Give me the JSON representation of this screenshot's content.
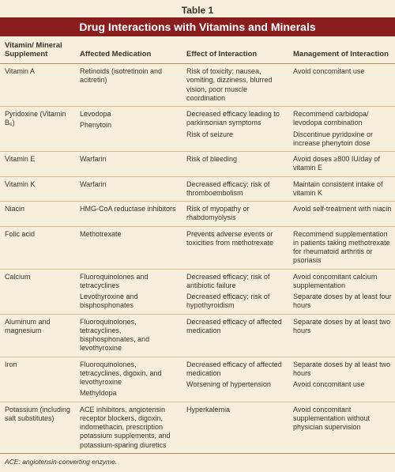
{
  "colors": {
    "background": "#f5efdb",
    "banner_bg": "#8a1e1e",
    "banner_text": "#ffffff",
    "rule": "#b58a5c",
    "row_rule": "#d9b990",
    "text": "#3a3428"
  },
  "typography": {
    "body_fontsize_pt": 9,
    "header_fontsize_pt": 9.5,
    "banner_fontsize_pt": 14,
    "label_fontsize_pt": 12,
    "footnote_fontsize_pt": 8.5
  },
  "table_label": "Table 1",
  "banner_title": "Drug Interactions with Vitamins and Minerals",
  "columns": [
    "Vitamin/ Mineral Supplement",
    "Affected Medication",
    "Effect of Interaction",
    "Management of Interaction"
  ],
  "column_widths_pct": [
    19,
    27,
    27,
    27
  ],
  "rows": [
    {
      "supplement": "Vitamin A",
      "lines": [
        {
          "med": "Retinoids (isotretinoin and acitretin)",
          "effect": "Risk of toxicity; nausea, vomiting, dizziness, blurred vision, poor muscle coordination",
          "mgmt": "Avoid concomitant use"
        }
      ]
    },
    {
      "supplement": "Pyridoxine (Vitamin B₆)",
      "lines": [
        {
          "med": "Levodopa",
          "effect": "Decreased efficacy leading to parkinsonian symptoms",
          "mgmt": "Recommend carbidopa/ levodopa combination"
        },
        {
          "med": "Phenytoin",
          "effect": "Risk of seizure",
          "mgmt": "Discontinue pyridoxine or increase phenytoin dose"
        }
      ]
    },
    {
      "supplement": "Vitamin E",
      "lines": [
        {
          "med": "Warfarin",
          "effect": "Risk of bleeding",
          "mgmt": "Avoid doses ≥800 IU/day of vitamin E"
        }
      ]
    },
    {
      "supplement": "Vitamin K",
      "lines": [
        {
          "med": "Warfarin",
          "effect": "Decreased efficacy; risk of thromboembolism",
          "mgmt": "Maintain consistent intake of vitamin K"
        }
      ]
    },
    {
      "supplement": "Niacin",
      "lines": [
        {
          "med": "HMG-CoA reductase inhibitors",
          "effect": "Risk of myopathy or rhabdomyolysis",
          "mgmt": "Avoid self-treatment with niacin"
        }
      ]
    },
    {
      "supplement": "Folic acid",
      "lines": [
        {
          "med": "Methotrexate",
          "effect": "Prevents adverse events or toxicities from methotrexate",
          "mgmt": "Recommend supplementation in patients taking methotrexate for rheumatoid arthritis or psoriasis"
        }
      ]
    },
    {
      "supplement": "Calcium",
      "lines": [
        {
          "med": "Fluoroquinolones and tetracyclines",
          "effect": "Decreased efficacy; risk of antibiotic failure",
          "mgmt": "Avoid concomitant calcium supplementation"
        },
        {
          "med": "Levothyroxine and bisphosphonates",
          "effect": "Decreased efficacy; risk of hypothyroidism",
          "mgmt": "Separate doses by at least four hours"
        }
      ]
    },
    {
      "supplement": "Aluminum and magnesium",
      "lines": [
        {
          "med": "Fluoroquinolones, tetracyclines, bisphosphonates, and levothyroxine",
          "effect": "Decreased efficacy of affected medication",
          "mgmt": "Separate doses by at least two hours"
        }
      ]
    },
    {
      "supplement": "Iron",
      "lines": [
        {
          "med": "Fluoroquinolones, tetracyclines, digoxin, and levothyroxine",
          "effect": "Decreased efficacy of affected medication",
          "mgmt": "Separate doses by at least two hours"
        },
        {
          "med": "Methyldopa",
          "effect": "Worsening of hypertension",
          "mgmt": "Avoid concomitant use"
        }
      ]
    },
    {
      "supplement": "Potassium (including salt substitutes)",
      "lines": [
        {
          "med": "ACE inhibitors, angiotensin receptor blockers, digoxin, indomethacin, prescription potassium supplements, and potassium-sparing diuretics",
          "effect": "Hyperkalemia",
          "mgmt": "Avoid concomitant supplementation without physician supervision"
        }
      ]
    }
  ],
  "footnote": "ACE: angiotensin-converting enzyme."
}
